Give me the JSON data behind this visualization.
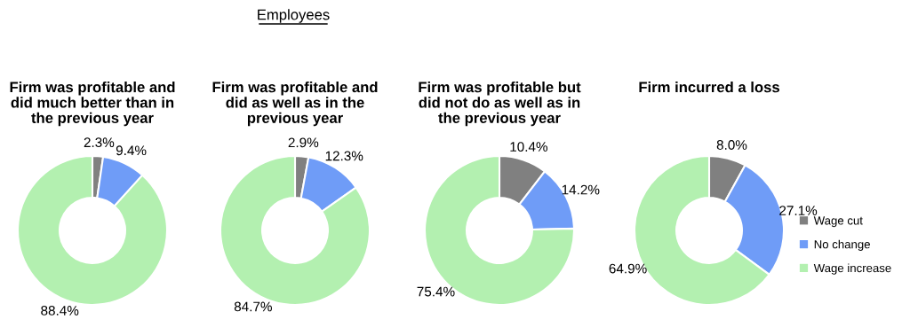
{
  "chart_data": [
    {
      "type": "donut",
      "title": "Firm was profitable and\ndid much better than in\nthe previous year",
      "annotations": [
        "Employees"
      ],
      "categories": [
        null,
        null,
        null
      ],
      "values": [
        2.3,
        9.4,
        88.4
      ],
      "value_labels": [
        "2.3%",
        "9.4%",
        "88.4%"
      ],
      "colors": [
        "#808080",
        "#6f9cf7",
        "#b3f0b0"
      ],
      "legend": false
    },
    {
      "type": "donut",
      "title": "Firm was profitable and\ndid as well as in the\nprevious year",
      "categories": [
        null,
        null,
        null
      ],
      "values": [
        2.9,
        12.3,
        84.7
      ],
      "value_labels": [
        "2.9%",
        "12.3%",
        "84.7%"
      ],
      "colors": [
        "#808080",
        "#6f9cf7",
        "#b3f0b0"
      ],
      "legend": false
    },
    {
      "type": "donut",
      "title": "Firm was profitable but\ndid not do as well as in\nthe previous year",
      "categories": [
        null,
        null,
        null
      ],
      "values": [
        10.4,
        14.2,
        75.4
      ],
      "value_labels": [
        "10.4%",
        "14.2%",
        "75.4%"
      ],
      "colors": [
        "#808080",
        "#6f9cf7",
        "#b3f0b0"
      ],
      "legend": false
    },
    {
      "type": "donut",
      "title": "Firm incurred a loss",
      "categories": [
        "Wage cut",
        "No change",
        "Wage increase"
      ],
      "values": [
        8.0,
        27.1,
        64.9
      ],
      "value_labels": [
        "8.0%",
        "27.1%",
        "64.9%"
      ],
      "colors": [
        "#808080",
        "#6f9cf7",
        "#b3f0b0"
      ],
      "legend": "right"
    }
  ]
}
